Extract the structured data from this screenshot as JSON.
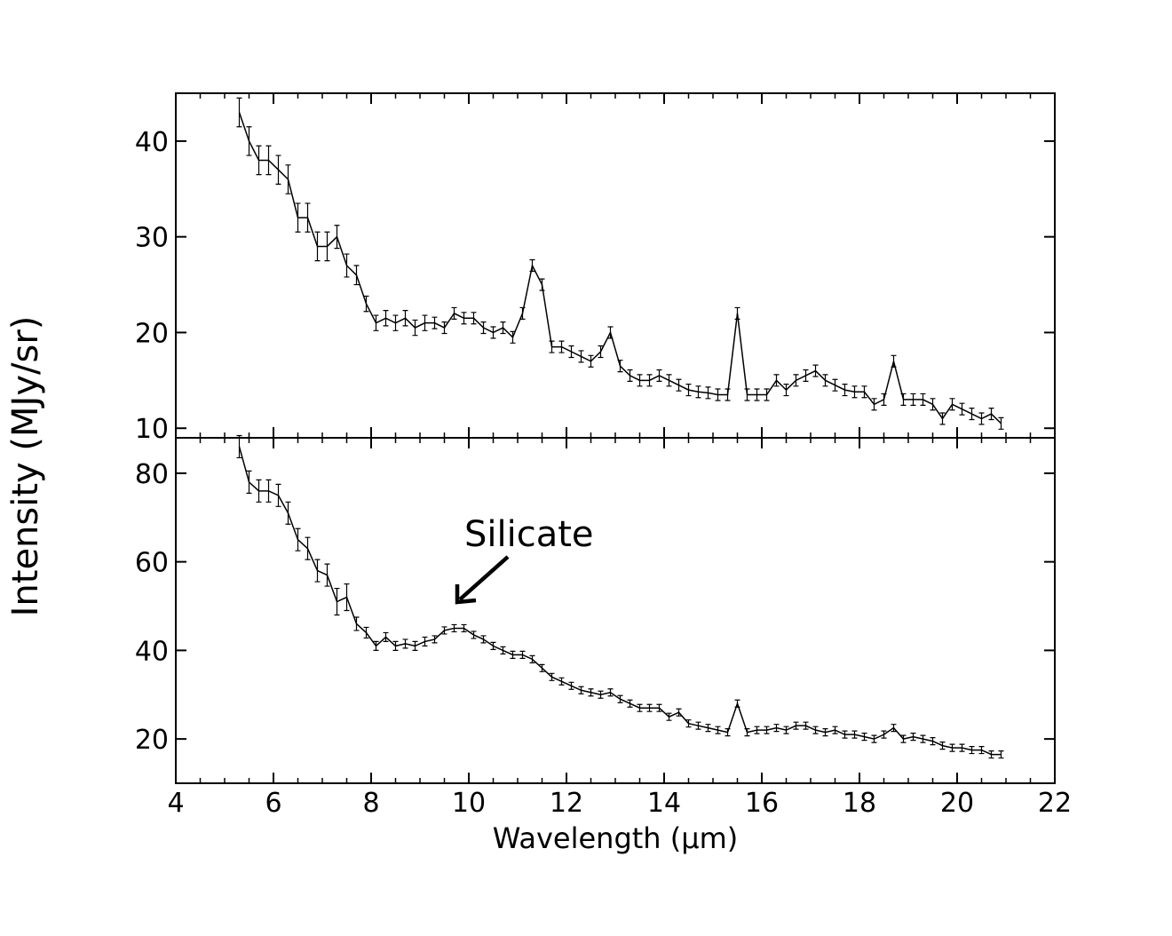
{
  "chart_data": [
    {
      "type": "line",
      "ylabel": "Intensity (MJy/sr)",
      "x": [
        5.3,
        5.5,
        5.7,
        5.9,
        6.1,
        6.3,
        6.5,
        6.7,
        6.9,
        7.1,
        7.3,
        7.5,
        7.7,
        7.9,
        8.1,
        8.3,
        8.5,
        8.7,
        8.9,
        9.1,
        9.3,
        9.5,
        9.7,
        9.9,
        10.1,
        10.3,
        10.5,
        10.7,
        10.9,
        11.1,
        11.3,
        11.5,
        11.7,
        11.9,
        12.1,
        12.3,
        12.5,
        12.7,
        12.9,
        13.1,
        13.3,
        13.5,
        13.7,
        13.9,
        14.1,
        14.3,
        14.5,
        14.7,
        14.9,
        15.1,
        15.3,
        15.5,
        15.7,
        15.9,
        16.1,
        16.3,
        16.5,
        16.7,
        16.9,
        17.1,
        17.3,
        17.5,
        17.7,
        17.9,
        18.1,
        18.3,
        18.5,
        18.7,
        18.9,
        19.1,
        19.3,
        19.5,
        19.7,
        19.9,
        20.1,
        20.3,
        20.5,
        20.7,
        20.9
      ],
      "values": [
        43,
        40,
        38,
        38,
        37,
        36,
        32,
        32,
        29,
        29,
        30,
        27,
        26,
        23,
        21,
        21.5,
        21,
        21.5,
        20.5,
        21,
        21,
        20.5,
        22,
        21.5,
        21.5,
        20.5,
        20,
        20.5,
        19.5,
        22,
        27,
        25,
        18.5,
        18.5,
        18,
        17.5,
        17,
        18,
        20,
        16.5,
        15.5,
        15,
        15,
        15.5,
        15,
        14.5,
        14,
        13.8,
        13.7,
        13.5,
        13.5,
        22,
        13.5,
        13.5,
        13.5,
        15,
        14,
        15,
        15.5,
        16,
        15,
        14.5,
        14,
        13.8,
        13.8,
        12.5,
        13,
        17,
        13,
        13,
        13,
        12.5,
        11,
        12.5,
        12,
        11.5,
        11,
        11.5,
        10.5
      ],
      "errors": [
        1.5,
        1.5,
        1.5,
        1.5,
        1.5,
        1.5,
        1.5,
        1.5,
        1.5,
        1.5,
        1.2,
        1.2,
        1,
        0.8,
        0.8,
        0.8,
        0.8,
        0.8,
        0.8,
        0.8,
        0.6,
        0.6,
        0.6,
        0.6,
        0.6,
        0.6,
        0.6,
        0.6,
        0.6,
        0.6,
        0.6,
        0.6,
        0.6,
        0.6,
        0.6,
        0.6,
        0.6,
        0.6,
        0.6,
        0.6,
        0.6,
        0.6,
        0.6,
        0.6,
        0.6,
        0.6,
        0.6,
        0.6,
        0.6,
        0.6,
        0.6,
        0.6,
        0.6,
        0.6,
        0.6,
        0.6,
        0.6,
        0.6,
        0.6,
        0.6,
        0.6,
        0.6,
        0.6,
        0.6,
        0.6,
        0.6,
        0.6,
        0.6,
        0.6,
        0.6,
        0.6,
        0.6,
        0.6,
        0.6,
        0.6,
        0.6,
        0.6,
        0.6,
        0.6
      ],
      "color": "#000000",
      "xlim": [
        4,
        22
      ],
      "ylim": [
        9,
        45
      ],
      "yticks": [
        10,
        20,
        30,
        40
      ]
    },
    {
      "type": "line",
      "xlabel": "Wavelength (μm)",
      "annotation": "Silicate",
      "x": [
        5.3,
        5.5,
        5.7,
        5.9,
        6.1,
        6.3,
        6.5,
        6.7,
        6.9,
        7.1,
        7.3,
        7.5,
        7.7,
        7.9,
        8.1,
        8.3,
        8.5,
        8.7,
        8.9,
        9.1,
        9.3,
        9.5,
        9.7,
        9.9,
        10.1,
        10.3,
        10.5,
        10.7,
        10.9,
        11.1,
        11.3,
        11.5,
        11.7,
        11.9,
        12.1,
        12.3,
        12.5,
        12.7,
        12.9,
        13.1,
        13.3,
        13.5,
        13.7,
        13.9,
        14.1,
        14.3,
        14.5,
        14.7,
        14.9,
        15.1,
        15.3,
        15.5,
        15.7,
        15.9,
        16.1,
        16.3,
        16.5,
        16.7,
        16.9,
        17.1,
        17.3,
        17.5,
        17.7,
        17.9,
        18.1,
        18.3,
        18.5,
        18.7,
        18.9,
        19.1,
        19.3,
        19.5,
        19.7,
        19.9,
        20.1,
        20.3,
        20.5,
        20.7,
        20.9
      ],
      "values": [
        86,
        78,
        76,
        76,
        75,
        71,
        65,
        63,
        58,
        57,
        51,
        52,
        46,
        44,
        41,
        43,
        41,
        41.5,
        41,
        42,
        42.5,
        44.5,
        45,
        45,
        43.5,
        42.5,
        41,
        40,
        39,
        39,
        38,
        36,
        34,
        33,
        32,
        31,
        30.5,
        30,
        30.5,
        29,
        28,
        27,
        27,
        27,
        25,
        26,
        23.5,
        23,
        22.5,
        22,
        21.5,
        28,
        21.5,
        22,
        22,
        22.5,
        22,
        23,
        23,
        22,
        21.5,
        22,
        21,
        21,
        20.5,
        20,
        21,
        22.5,
        20,
        20.5,
        20,
        19.5,
        18.5,
        18,
        18,
        17.5,
        17.5,
        16.5,
        16.5
      ],
      "errors": [
        2.5,
        2.5,
        2.5,
        2.5,
        2.5,
        2.5,
        2.5,
        2.5,
        2.5,
        2.5,
        3,
        3,
        1.5,
        1.2,
        1,
        1,
        1,
        1,
        1,
        1,
        0.8,
        0.8,
        0.8,
        0.8,
        0.8,
        0.8,
        0.8,
        0.8,
        0.8,
        0.8,
        0.8,
        0.8,
        0.8,
        0.8,
        0.8,
        0.8,
        0.8,
        0.8,
        0.8,
        0.8,
        0.8,
        0.8,
        0.8,
        0.8,
        0.8,
        0.8,
        0.8,
        0.8,
        0.8,
        0.8,
        0.8,
        0.8,
        0.8,
        0.8,
        0.8,
        0.8,
        0.8,
        0.8,
        0.8,
        0.8,
        0.8,
        0.8,
        0.8,
        0.8,
        0.8,
        0.8,
        0.8,
        0.8,
        0.8,
        0.8,
        0.8,
        0.8,
        0.8,
        0.8,
        0.8,
        0.8,
        0.8,
        0.8,
        0.8
      ],
      "color": "#000000",
      "xlim": [
        4,
        22
      ],
      "ylim": [
        10,
        88
      ],
      "xticks": [
        4,
        6,
        8,
        10,
        12,
        14,
        16,
        18,
        20,
        22
      ],
      "yticks": [
        20,
        40,
        60,
        80
      ]
    }
  ]
}
